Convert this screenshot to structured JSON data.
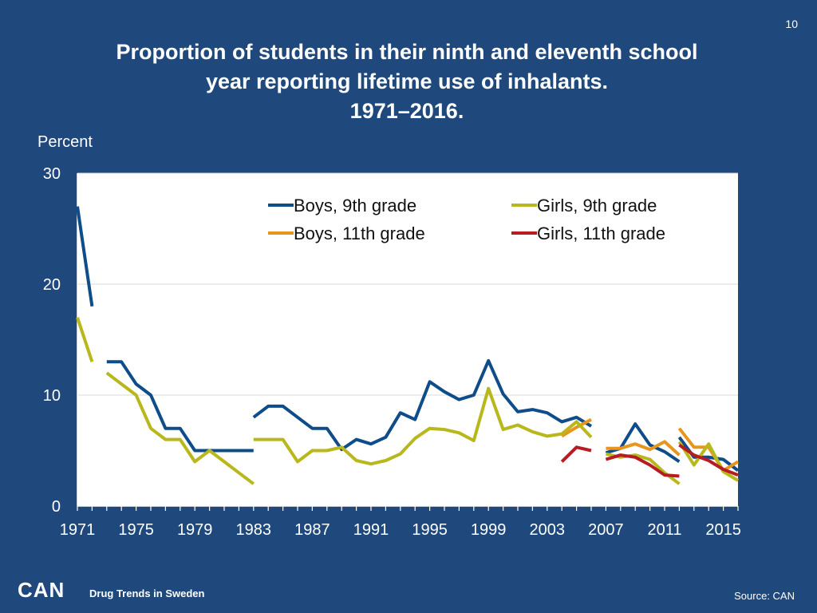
{
  "page_number": "10",
  "title_lines": [
    "Proportion of students in their ninth and eleventh school",
    "year reporting lifetime use of inhalants.",
    "1971–2016."
  ],
  "footer": {
    "logo_text": "CAN",
    "tagline": "Drug Trends in Sweden",
    "source": "Source: CAN"
  },
  "chart_data": {
    "type": "line",
    "title": "Proportion of students in their ninth and eleventh school year reporting lifetime use of inhalants. 1971–2016.",
    "ylabel": "Percent",
    "xlabel": "",
    "xlim": [
      1971,
      2016
    ],
    "ylim": [
      0,
      30
    ],
    "y_ticks": [
      0,
      10,
      20,
      30
    ],
    "x_ticks": [
      1971,
      1975,
      1979,
      1983,
      1987,
      1991,
      1995,
      1999,
      2003,
      2007,
      2011,
      2015
    ],
    "grid": true,
    "legend_position": "top-right",
    "series": [
      {
        "name": "Boys, 9th grade",
        "color": "#0f4c8a",
        "points": [
          [
            1971,
            27
          ],
          [
            1972,
            18
          ],
          null,
          [
            1973,
            13
          ],
          [
            1974,
            13
          ],
          [
            1975,
            11
          ],
          [
            1976,
            10
          ],
          [
            1977,
            7
          ],
          [
            1978,
            7
          ],
          [
            1979,
            5
          ],
          [
            1980,
            5
          ],
          [
            1981,
            5
          ],
          [
            1982,
            5
          ],
          [
            1983,
            5
          ],
          null,
          [
            1983,
            8
          ],
          [
            1984,
            9
          ],
          [
            1985,
            9
          ],
          [
            1986,
            8
          ],
          [
            1987,
            7
          ],
          [
            1988,
            7
          ],
          [
            1989,
            5.1
          ],
          [
            1990,
            6
          ],
          [
            1991,
            5.6
          ],
          [
            1992,
            6.2
          ],
          [
            1993,
            8.4
          ],
          [
            1994,
            7.8
          ],
          [
            1995,
            11.2
          ],
          [
            1996,
            10.3
          ],
          [
            1997,
            9.6
          ],
          [
            1998,
            10
          ],
          [
            1999,
            13.1
          ],
          [
            2000,
            10.1
          ],
          [
            2001,
            8.5
          ],
          [
            2002,
            8.7
          ],
          [
            2003,
            8.4
          ],
          [
            2004,
            7.6
          ],
          [
            2005,
            8
          ],
          [
            2006,
            7.2
          ],
          null,
          [
            2007,
            4.8
          ],
          [
            2008,
            5.2
          ],
          [
            2009,
            7.4
          ],
          [
            2010,
            5.5
          ],
          [
            2011,
            4.9
          ],
          [
            2012,
            4
          ],
          null,
          [
            2012,
            6.2
          ],
          [
            2013,
            4.4
          ],
          [
            2014,
            4.4
          ],
          [
            2015,
            4.2
          ],
          [
            2016,
            3.2
          ]
        ]
      },
      {
        "name": "Boys, 11th grade",
        "color": "#e8951e",
        "points": [
          [
            2004,
            6.3
          ],
          [
            2005,
            7.1
          ],
          [
            2006,
            7.8
          ],
          null,
          [
            2007,
            5.2
          ],
          [
            2008,
            5.2
          ],
          [
            2009,
            5.6
          ],
          [
            2010,
            5.1
          ],
          [
            2011,
            5.8
          ],
          [
            2012,
            4.6
          ],
          null,
          [
            2012,
            7
          ],
          [
            2013,
            5.3
          ],
          [
            2014,
            5.3
          ],
          [
            2015,
            3.2
          ],
          [
            2016,
            4
          ]
        ]
      },
      {
        "name": "Girls, 9th grade",
        "color": "#b8b71b",
        "points": [
          [
            1971,
            17
          ],
          [
            1972,
            13
          ],
          null,
          [
            1973,
            12
          ],
          [
            1974,
            11
          ],
          [
            1975,
            10
          ],
          [
            1976,
            7
          ],
          [
            1977,
            6
          ],
          [
            1978,
            6
          ],
          [
            1979,
            4
          ],
          [
            1980,
            5
          ],
          [
            1981,
            4
          ],
          [
            1982,
            3
          ],
          [
            1983,
            2
          ],
          null,
          [
            1983,
            6
          ],
          [
            1984,
            6
          ],
          [
            1985,
            6
          ],
          [
            1986,
            4
          ],
          [
            1987,
            5
          ],
          [
            1988,
            5
          ],
          [
            1989,
            5.3
          ],
          [
            1990,
            4.1
          ],
          [
            1991,
            3.8
          ],
          [
            1992,
            4.1
          ],
          [
            1993,
            4.7
          ],
          [
            1994,
            6.1
          ],
          [
            1995,
            7
          ],
          [
            1996,
            6.9
          ],
          [
            1997,
            6.6
          ],
          [
            1998,
            5.9
          ],
          [
            1999,
            10.6
          ],
          [
            2000,
            6.9
          ],
          [
            2001,
            7.3
          ],
          [
            2002,
            6.7
          ],
          [
            2003,
            6.3
          ],
          [
            2004,
            6.5
          ],
          [
            2005,
            7.6
          ],
          [
            2006,
            6.2
          ],
          null,
          [
            2007,
            4.7
          ],
          [
            2008,
            4.4
          ],
          [
            2009,
            4.6
          ],
          [
            2010,
            4.2
          ],
          [
            2011,
            3
          ],
          [
            2012,
            2
          ],
          null,
          [
            2012,
            5.8
          ],
          [
            2013,
            3.7
          ],
          [
            2014,
            5.6
          ],
          [
            2015,
            3.1
          ],
          [
            2016,
            2.3
          ]
        ]
      },
      {
        "name": "Girls, 11th grade",
        "color": "#b61c22",
        "points": [
          [
            2004,
            4
          ],
          [
            2005,
            5.3
          ],
          [
            2006,
            5
          ],
          null,
          [
            2007,
            4.2
          ],
          [
            2008,
            4.6
          ],
          [
            2009,
            4.4
          ],
          [
            2010,
            3.7
          ],
          [
            2011,
            2.8
          ],
          [
            2012,
            2.7
          ],
          null,
          [
            2012,
            5.5
          ],
          [
            2013,
            4.6
          ],
          [
            2014,
            4.1
          ],
          [
            2015,
            3.3
          ],
          [
            2016,
            2.8
          ]
        ]
      }
    ]
  }
}
